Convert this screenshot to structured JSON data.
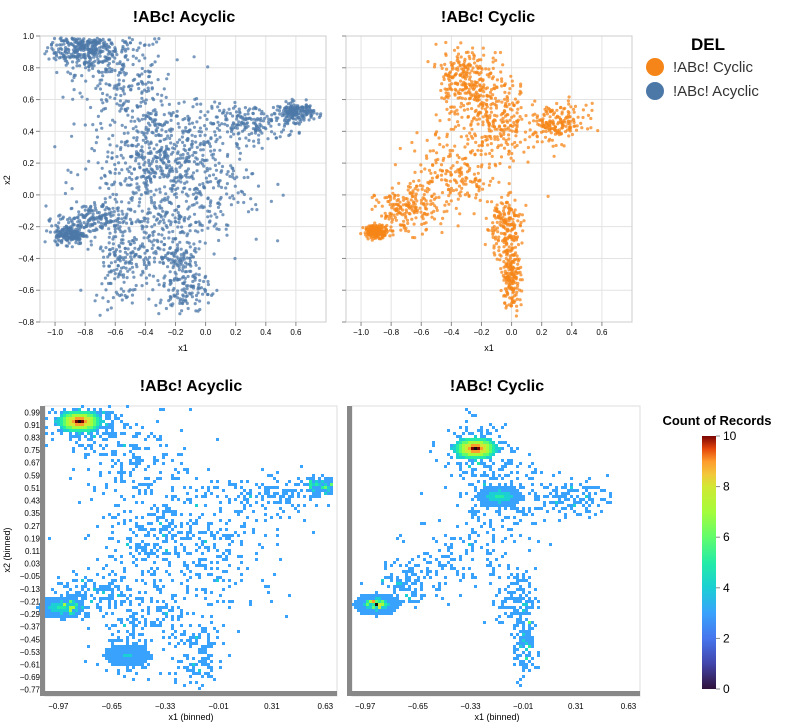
{
  "chart_data": [
    {
      "type": "scatter",
      "title": "!ABc! Acyclic",
      "xlabel": "x1",
      "ylabel": "x2",
      "xlim": [
        -1.1,
        0.8
      ],
      "ylim": [
        -0.8,
        1.0
      ],
      "xticks": [
        "−1.0",
        "−0.8",
        "−0.6",
        "−0.4",
        "−0.2",
        "0.0",
        "0.2",
        "0.4",
        "0.6"
      ],
      "yticks": [
        "1.0",
        "0.8",
        "0.6",
        "0.4",
        "0.2",
        "0.0",
        "−0.2",
        "−0.4",
        "−0.6",
        "−0.8"
      ],
      "grid": true,
      "series": [
        {
          "name": "!ABc! Acyclic",
          "color": "#4c78a8",
          "clusters": [
            {
              "x": -0.85,
              "y": 0.93,
              "sx": 0.1,
              "sy": 0.05
            },
            {
              "x": -0.75,
              "y": 0.9,
              "sx": 0.12,
              "sy": 0.07
            },
            {
              "x": -0.55,
              "y": 0.75,
              "sx": 0.15,
              "sy": 0.15
            },
            {
              "x": -0.35,
              "y": 0.4,
              "sx": 0.18,
              "sy": 0.2
            },
            {
              "x": -0.2,
              "y": 0.25,
              "sx": 0.2,
              "sy": 0.15
            },
            {
              "x": 0.3,
              "y": 0.45,
              "sx": 0.15,
              "sy": 0.06
            },
            {
              "x": 0.6,
              "y": 0.52,
              "sx": 0.06,
              "sy": 0.03
            },
            {
              "x": -0.4,
              "y": 0.15,
              "sx": 0.2,
              "sy": 0.12
            },
            {
              "x": -0.75,
              "y": -0.15,
              "sx": 0.12,
              "sy": 0.05
            },
            {
              "x": -0.9,
              "y": -0.25,
              "sx": 0.05,
              "sy": 0.03
            },
            {
              "x": -0.55,
              "y": -0.4,
              "sx": 0.1,
              "sy": 0.15
            },
            {
              "x": -0.15,
              "y": -0.55,
              "sx": 0.08,
              "sy": 0.12
            },
            {
              "x": -0.3,
              "y": -0.25,
              "sx": 0.15,
              "sy": 0.15
            },
            {
              "x": 0.0,
              "y": 0.05,
              "sx": 0.2,
              "sy": 0.2
            }
          ]
        }
      ]
    },
    {
      "type": "scatter",
      "title": "!ABc! Cyclic",
      "xlabel": "x1",
      "ylabel": "",
      "xlim": [
        -1.1,
        0.8
      ],
      "ylim": [
        -0.8,
        1.0
      ],
      "xticks": [
        "−1.0",
        "−0.8",
        "−0.6",
        "−0.4",
        "−0.2",
        "0.0",
        "0.2",
        "0.4",
        "0.6"
      ],
      "grid": true,
      "series": [
        {
          "name": "!ABc! Cyclic",
          "color": "#f58518",
          "clusters": [
            {
              "x": -0.32,
              "y": 0.75,
              "sx": 0.08,
              "sy": 0.1
            },
            {
              "x": -0.2,
              "y": 0.55,
              "sx": 0.15,
              "sy": 0.18
            },
            {
              "x": -0.1,
              "y": 0.45,
              "sx": 0.12,
              "sy": 0.12
            },
            {
              "x": 0.3,
              "y": 0.45,
              "sx": 0.1,
              "sy": 0.06
            },
            {
              "x": -0.4,
              "y": 0.1,
              "sx": 0.15,
              "sy": 0.12
            },
            {
              "x": -0.7,
              "y": -0.1,
              "sx": 0.1,
              "sy": 0.07
            },
            {
              "x": -0.9,
              "y": -0.23,
              "sx": 0.04,
              "sy": 0.02
            },
            {
              "x": 0.0,
              "y": -0.5,
              "sx": 0.03,
              "sy": 0.12
            },
            {
              "x": -0.05,
              "y": -0.2,
              "sx": 0.06,
              "sy": 0.1
            }
          ]
        }
      ]
    },
    {
      "type": "heatmap",
      "title": "!ABc! Acyclic",
      "xlabel": "x1 (binned)",
      "ylabel": "x2 (binned)",
      "xticks": [
        "−0.97",
        "−0.65",
        "−0.33",
        "−0.01",
        "0.31",
        "0.63"
      ],
      "yticks": [
        "0.99",
        "0.91",
        "0.83",
        "0.75",
        "0.67",
        "0.59",
        "0.51",
        "0.43",
        "0.35",
        "0.27",
        "0.19",
        "0.11",
        "0.03",
        "−0.05",
        "−0.13",
        "−0.21",
        "−0.29",
        "−0.37",
        "−0.45",
        "−0.53",
        "−0.61",
        "−0.69",
        "−0.77"
      ],
      "color_scale": "turbo",
      "hotspots": [
        {
          "x": -0.85,
          "y": 0.93,
          "count": 10
        },
        {
          "x": -0.95,
          "y": -0.25,
          "count": 4
        },
        {
          "x": -0.55,
          "y": -0.55,
          "count": 3
        }
      ]
    },
    {
      "type": "heatmap",
      "title": "!ABc! Cyclic",
      "xlabel": "x1 (binned)",
      "ylabel": "",
      "xticks": [
        "−0.97",
        "−0.65",
        "−0.33",
        "−0.01",
        "0.31",
        "0.63"
      ],
      "color_scale": "turbo",
      "hotspots": [
        {
          "x": -0.3,
          "y": 0.76,
          "count": 10
        },
        {
          "x": -0.15,
          "y": 0.45,
          "count": 4
        },
        {
          "x": -0.9,
          "y": -0.23,
          "count": 4
        }
      ]
    }
  ],
  "legend": {
    "title": "DEL",
    "items": [
      {
        "label": "!ABc! Cyclic",
        "color": "#f58518"
      },
      {
        "label": "!ABc! Acyclic",
        "color": "#4c78a8"
      }
    ]
  },
  "colorbar": {
    "title": "Count of Records",
    "min": 0,
    "max": 10,
    "ticks": [
      "10",
      "8",
      "6",
      "4",
      "2",
      "0"
    ]
  }
}
